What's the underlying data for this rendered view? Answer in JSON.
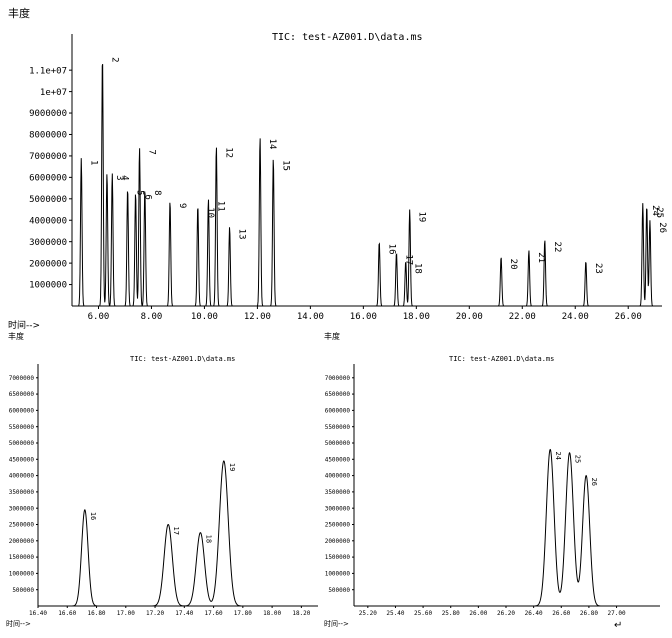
{
  "chart_data": [
    {
      "type": "line",
      "ylabel": "丰度",
      "xlabel": "时间-->",
      "title": "TIC: test-AZ001.D\\data.ms",
      "xlim": [
        5.0,
        27.2
      ],
      "ylim": [
        0,
        12500000
      ],
      "yticks": [
        1000000,
        2000000,
        3000000,
        4000000,
        5000000,
        6000000,
        7000000,
        8000000,
        9000000,
        10000000,
        11000000
      ],
      "ytick_labels": [
        "1000000",
        "2000000",
        "3000000",
        "4000000",
        "5000000",
        "6000000",
        "7000000",
        "8000000",
        "9000000",
        "1e+07",
        "1.1e+07"
      ],
      "xticks": [
        6,
        8,
        10,
        12,
        14,
        16,
        18,
        20,
        22,
        24,
        26
      ],
      "xtick_labels": [
        "6.00",
        "8.00",
        "10.00",
        "12.00",
        "14.00",
        "16.00",
        "18.00",
        "20.00",
        "22.00",
        "24.00",
        "26.00"
      ],
      "peaks": [
        {
          "label": "1",
          "x": 5.35,
          "y": 6900000
        },
        {
          "label": "2",
          "x": 6.15,
          "y": 11700000
        },
        {
          "label": "3",
          "x": 6.32,
          "y": 6200000
        },
        {
          "label": "4",
          "x": 6.52,
          "y": 6200000
        },
        {
          "label": "5",
          "x": 7.1,
          "y": 5500000
        },
        {
          "label": "6",
          "x": 7.4,
          "y": 5300000
        },
        {
          "label": "7",
          "x": 7.55,
          "y": 7400000
        },
        {
          "label": "8",
          "x": 7.75,
          "y": 5500000
        },
        {
          "label": "9",
          "x": 8.7,
          "y": 4900000
        },
        {
          "label": "10",
          "x": 9.75,
          "y": 4700000
        },
        {
          "label": "11",
          "x": 10.15,
          "y": 5000000
        },
        {
          "label": "12",
          "x": 10.45,
          "y": 7500000
        },
        {
          "label": "13",
          "x": 10.95,
          "y": 3700000
        },
        {
          "label": "14",
          "x": 12.1,
          "y": 7900000
        },
        {
          "label": "15",
          "x": 12.6,
          "y": 6900000
        },
        {
          "label": "16",
          "x": 16.6,
          "y": 3000000
        },
        {
          "label": "17",
          "x": 17.25,
          "y": 2500000
        },
        {
          "label": "18",
          "x": 17.6,
          "y": 2100000
        },
        {
          "label": "19",
          "x": 17.75,
          "y": 4500000
        },
        {
          "label": "20",
          "x": 21.2,
          "y": 2300000
        },
        {
          "label": "21",
          "x": 22.25,
          "y": 2600000
        },
        {
          "label": "22",
          "x": 22.85,
          "y": 3100000
        },
        {
          "label": "23",
          "x": 24.4,
          "y": 2100000
        },
        {
          "label": "24",
          "x": 26.55,
          "y": 4800000
        },
        {
          "label": "25",
          "x": 26.7,
          "y": 4700000
        },
        {
          "label": "26",
          "x": 26.82,
          "y": 4000000
        }
      ]
    },
    {
      "type": "line",
      "ylabel": "丰度",
      "xlabel": "时间-->",
      "title": "TIC: test-AZ001.D\\data.ms",
      "xlim": [
        16.4,
        18.3
      ],
      "ylim": [
        0,
        7300000
      ],
      "yticks": [
        500000,
        1000000,
        1500000,
        2000000,
        2500000,
        3000000,
        3500000,
        4000000,
        4500000,
        5000000,
        5500000,
        6000000,
        6500000,
        7000000
      ],
      "ytick_labels": [
        "500000",
        "1000000",
        "1500000",
        "2000000",
        "2500000",
        "3000000",
        "3500000",
        "4000000",
        "4500000",
        "5000000",
        "5500000",
        "6000000",
        "6500000",
        "7000000"
      ],
      "xticks": [
        16.4,
        16.6,
        16.8,
        17.0,
        17.2,
        17.4,
        17.6,
        17.8,
        18.0,
        18.2
      ],
      "xtick_labels": [
        "16.40",
        "16.60",
        "16.80",
        "17.00",
        "17.20",
        "17.40",
        "17.60",
        "17.80",
        "18.00",
        "18.20"
      ],
      "peaks": [
        {
          "label": "16",
          "x": 16.72,
          "y": 2950000,
          "w": 0.022
        },
        {
          "label": "17",
          "x": 17.29,
          "y": 2500000,
          "w": 0.028
        },
        {
          "label": "18",
          "x": 17.51,
          "y": 2250000,
          "w": 0.028
        },
        {
          "label": "19",
          "x": 17.67,
          "y": 4450000,
          "w": 0.03
        }
      ]
    },
    {
      "type": "line",
      "ylabel": "丰度",
      "xlabel": "时间-->",
      "title": "TIC: test-AZ001.D\\data.ms",
      "xlim": [
        25.1,
        27.3
      ],
      "ylim": [
        0,
        7300000
      ],
      "yticks": [
        500000,
        1000000,
        1500000,
        2000000,
        2500000,
        3000000,
        3500000,
        4000000,
        4500000,
        5000000,
        5500000,
        6000000,
        6500000,
        7000000
      ],
      "ytick_labels": [
        "500000",
        "1000000",
        "1500000",
        "2000000",
        "2500000",
        "3000000",
        "3500000",
        "4000000",
        "4500000",
        "5000000",
        "5500000",
        "6000000",
        "6500000",
        "7000000"
      ],
      "xticks": [
        25.2,
        25.4,
        25.6,
        25.8,
        26.0,
        26.2,
        26.4,
        26.6,
        26.8,
        27.0
      ],
      "xtick_labels": [
        "25.20",
        "25.40",
        "25.60",
        "25.80",
        "26.00",
        "26.20",
        "26.40",
        "26.60",
        "26.80",
        "27.00"
      ],
      "peaks": [
        {
          "label": "24",
          "x": 26.52,
          "y": 4800000,
          "w": 0.028
        },
        {
          "label": "25",
          "x": 26.66,
          "y": 4700000,
          "w": 0.028
        },
        {
          "label": "26",
          "x": 26.78,
          "y": 4000000,
          "w": 0.026
        }
      ]
    }
  ],
  "footer_mark": "↵"
}
